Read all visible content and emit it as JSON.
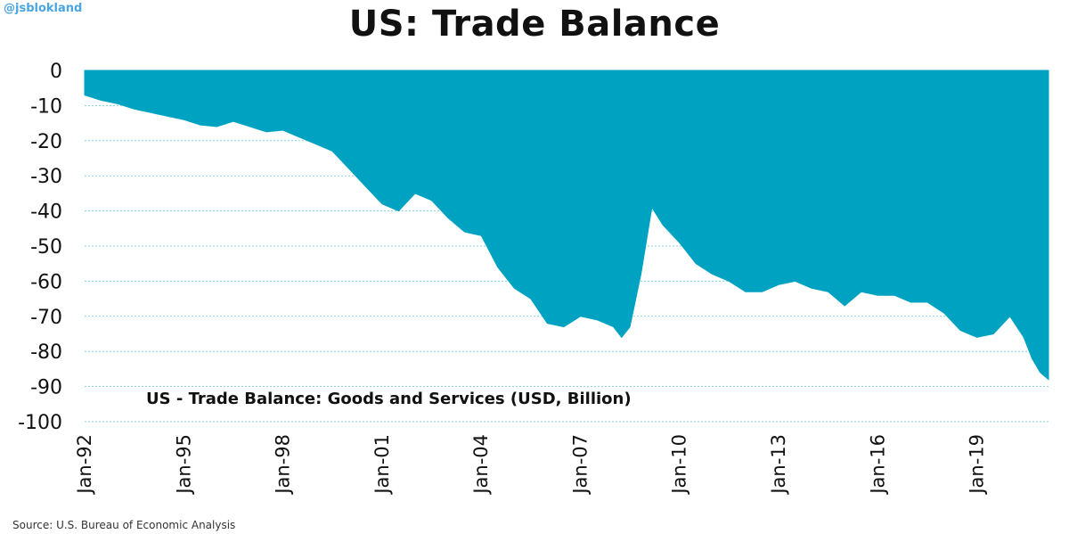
{
  "watermark": "@jsblokland",
  "source": "Source: U.S. Bureau of Economic Analysis",
  "colors": {
    "area": "#00a2c1",
    "grid": "#7fd0df",
    "text": "#111111"
  },
  "chart_data": {
    "type": "area",
    "title": "US: Trade Balance",
    "series_label": "US - Trade Balance: Goods and Services (USD, Billion)",
    "xlabel": "",
    "ylabel": "",
    "ylim": [
      -100,
      0
    ],
    "yticks": [
      0,
      -10,
      -20,
      -30,
      -40,
      -50,
      -60,
      -70,
      -80,
      -90,
      -100
    ],
    "xlim": [
      "1992-01",
      "2021-03"
    ],
    "xticks": [
      "Jan-92",
      "Jan-95",
      "Jan-98",
      "Jan-01",
      "Jan-04",
      "Jan-07",
      "Jan-10",
      "Jan-13",
      "Jan-16",
      "Jan-19"
    ],
    "grid": true,
    "series": [
      {
        "values": [
          [
            "1992-01",
            -7
          ],
          [
            "1992-07",
            -8.5
          ],
          [
            "1993-01",
            -9.5
          ],
          [
            "1993-07",
            -11
          ],
          [
            "1994-01",
            -12
          ],
          [
            "1994-07",
            -13
          ],
          [
            "1995-01",
            -14
          ],
          [
            "1995-07",
            -15.5
          ],
          [
            "1996-01",
            -16
          ],
          [
            "1996-07",
            -14.5
          ],
          [
            "1997-01",
            -16
          ],
          [
            "1997-07",
            -17.5
          ],
          [
            "1998-01",
            -17
          ],
          [
            "1998-07",
            -19
          ],
          [
            "1999-01",
            -21
          ],
          [
            "1999-07",
            -23
          ],
          [
            "2000-01",
            -28
          ],
          [
            "2000-07",
            -33
          ],
          [
            "2001-01",
            -38
          ],
          [
            "2001-07",
            -40
          ],
          [
            "2002-01",
            -35
          ],
          [
            "2002-07",
            -37
          ],
          [
            "2003-01",
            -42
          ],
          [
            "2003-07",
            -46
          ],
          [
            "2004-01",
            -47
          ],
          [
            "2004-07",
            -56
          ],
          [
            "2005-01",
            -62
          ],
          [
            "2005-07",
            -65
          ],
          [
            "2006-01",
            -72
          ],
          [
            "2006-07",
            -73
          ],
          [
            "2007-01",
            -70
          ],
          [
            "2007-07",
            -71
          ],
          [
            "2008-01",
            -73
          ],
          [
            "2008-04",
            -76
          ],
          [
            "2008-07",
            -73
          ],
          [
            "2008-11",
            -58
          ],
          [
            "2009-03",
            -39
          ],
          [
            "2009-07",
            -44
          ],
          [
            "2010-01",
            -49
          ],
          [
            "2010-07",
            -55
          ],
          [
            "2011-01",
            -58
          ],
          [
            "2011-07",
            -60
          ],
          [
            "2012-01",
            -63
          ],
          [
            "2012-07",
            -63
          ],
          [
            "2013-01",
            -61
          ],
          [
            "2013-07",
            -60
          ],
          [
            "2014-01",
            -62
          ],
          [
            "2014-07",
            -63
          ],
          [
            "2015-01",
            -67
          ],
          [
            "2015-07",
            -63
          ],
          [
            "2016-01",
            -64
          ],
          [
            "2016-07",
            -64
          ],
          [
            "2017-01",
            -66
          ],
          [
            "2017-07",
            -66
          ],
          [
            "2018-01",
            -69
          ],
          [
            "2018-07",
            -74
          ],
          [
            "2019-01",
            -76
          ],
          [
            "2019-07",
            -75
          ],
          [
            "2020-01",
            -70
          ],
          [
            "2020-06",
            -76
          ],
          [
            "2020-09",
            -82
          ],
          [
            "2020-12",
            -86
          ],
          [
            "2021-03",
            -88
          ]
        ]
      }
    ]
  }
}
